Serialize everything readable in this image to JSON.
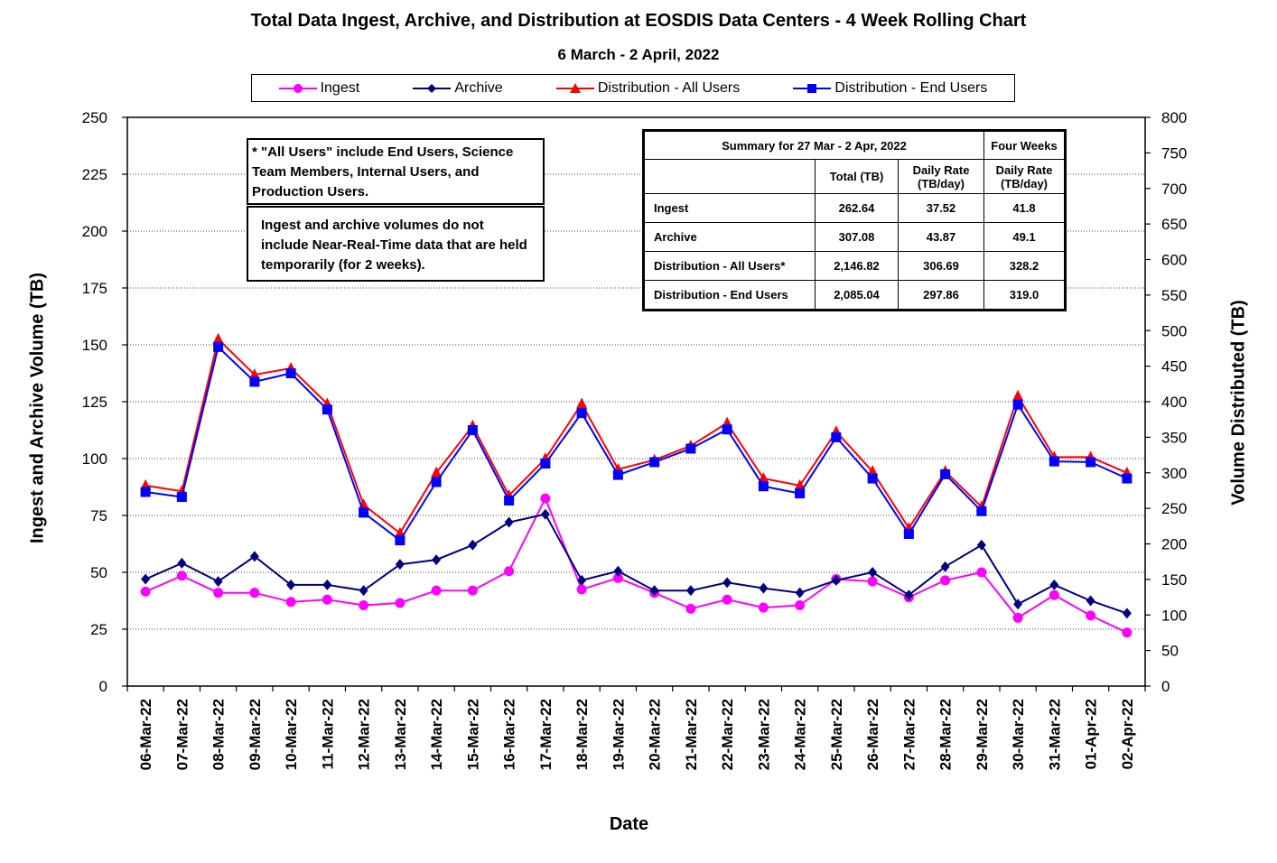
{
  "chart_data": {
    "type": "line",
    "title": "Total Data Ingest, Archive, and  Distribution at EOSDIS Data Centers - 4 Week Rolling Chart",
    "subtitle": "6  March   -  2  April,  2022",
    "xlabel": "Date",
    "ylabel_left": "Ingest and Archive Volume (TB)",
    "ylabel_right": "Volume Distributed (TB)",
    "ylim_left": [
      0,
      250
    ],
    "ylim_right": [
      0,
      800
    ],
    "yticks_left": [
      "0",
      "25",
      "50",
      "75",
      "100",
      "125",
      "150",
      "175",
      "200",
      "225",
      "250"
    ],
    "yticks_right": [
      "0",
      "50",
      "100",
      "150",
      "200",
      "250",
      "300",
      "350",
      "400",
      "450",
      "500",
      "550",
      "600",
      "650",
      "700",
      "750",
      "800"
    ],
    "grid": true,
    "legend_position": "top",
    "categories": [
      "06-Mar-22",
      "07-Mar-22",
      "08-Mar-22",
      "09-Mar-22",
      "10-Mar-22",
      "11-Mar-22",
      "12-Mar-22",
      "13-Mar-22",
      "14-Mar-22",
      "15-Mar-22",
      "16-Mar-22",
      "17-Mar-22",
      "18-Mar-22",
      "19-Mar-22",
      "20-Mar-22",
      "21-Mar-22",
      "22-Mar-22",
      "23-Mar-22",
      "24-Mar-22",
      "25-Mar-22",
      "26-Mar-22",
      "27-Mar-22",
      "28-Mar-22",
      "29-Mar-22",
      "30-Mar-22",
      "31-Mar-22",
      "01-Apr-22",
      "02-Apr-22"
    ],
    "series": [
      {
        "name": "Ingest",
        "axis": "left",
        "color": "#ff00ff",
        "marker": "circle",
        "values": [
          41.5,
          48.5,
          41,
          41,
          37,
          38,
          35.5,
          36.5,
          42,
          42,
          50.5,
          82.5,
          42.5,
          47.5,
          41,
          34,
          38,
          34.5,
          35.5,
          47,
          46,
          39,
          46.5,
          50,
          30,
          40,
          31,
          23.5
        ]
      },
      {
        "name": "Archive",
        "axis": "left",
        "color": "#000080",
        "marker": "diamond",
        "values": [
          47,
          54,
          46,
          57,
          44.5,
          44.5,
          42,
          53.5,
          55.5,
          62,
          72,
          75.5,
          46.5,
          50.5,
          42,
          42,
          45.5,
          43,
          41,
          46.5,
          50,
          40,
          52.5,
          62,
          36,
          44.5,
          37.5,
          32
        ]
      },
      {
        "name": "Distribution - All Users",
        "axis": "right",
        "color": "#ff0000",
        "marker": "triangle",
        "values": [
          282,
          274,
          488,
          438,
          447,
          397,
          255,
          215,
          300,
          366,
          268,
          320,
          397,
          305,
          318,
          338,
          370,
          292,
          282,
          358,
          302,
          222,
          302,
          252,
          408,
          322,
          322,
          300
        ]
      },
      {
        "name": "Distribution - End Users",
        "axis": "right",
        "color": "#0000ff",
        "marker": "square",
        "values": [
          273,
          266,
          477,
          428,
          440,
          389,
          244,
          205,
          287,
          360,
          261,
          313,
          384,
          297,
          315,
          334,
          361,
          281,
          271,
          350,
          292,
          214,
          298,
          246,
          396,
          316,
          315,
          292
        ]
      }
    ]
  },
  "notes": {
    "note1": "* \"All Users\" include End Users, Science Team Members,  Internal Users, and Production Users.",
    "note2": "Ingest and archive volumes do not include Near-Real-Time data that are held temporarily (for 2 weeks)."
  },
  "summary": {
    "header_left": "Summary  for  27  Mar   -  2  Apr,  2022",
    "header_right": "Four Weeks",
    "col_total": "Total (TB)",
    "col_daily": "Daily Rate (TB/day)",
    "col_four": "Daily Rate (TB/day)",
    "rows": [
      {
        "label": "Ingest",
        "total": "262.64",
        "daily": "37.52",
        "four": "41.8"
      },
      {
        "label": "Archive",
        "total": "307.08",
        "daily": "43.87",
        "four": "49.1"
      },
      {
        "label": "Distribution - All Users*",
        "total": "2,146.82",
        "daily": "306.69",
        "four": "328.2"
      },
      {
        "label": "Distribution - End Users",
        "total": "2,085.04",
        "daily": "297.86",
        "four": "319.0"
      }
    ]
  }
}
